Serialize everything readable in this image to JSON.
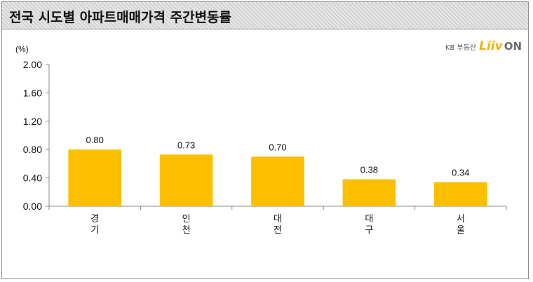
{
  "title": "전국 시도별 아파트매매가격 주간변동률",
  "logo": {
    "kb": "KB 부동산",
    "liiv": "Liiv",
    "on": "ON"
  },
  "chart_data": {
    "type": "bar",
    "title": "전국 시도별 아파트매매가격 주간변동률",
    "ylabel": "(%)",
    "xlabel": "",
    "categories": [
      "경기",
      "인천",
      "대전",
      "대구",
      "서울"
    ],
    "values": [
      0.8,
      0.73,
      0.7,
      0.38,
      0.34
    ],
    "data_labels": [
      "0.80",
      "0.73",
      "0.70",
      "0.38",
      "0.34"
    ],
    "ylim": [
      0,
      2.0
    ],
    "yticks": [
      "0.00",
      "0.40",
      "0.80",
      "1.20",
      "1.60",
      "2.00"
    ],
    "grid": false,
    "bar_color": "#fbbf00"
  }
}
